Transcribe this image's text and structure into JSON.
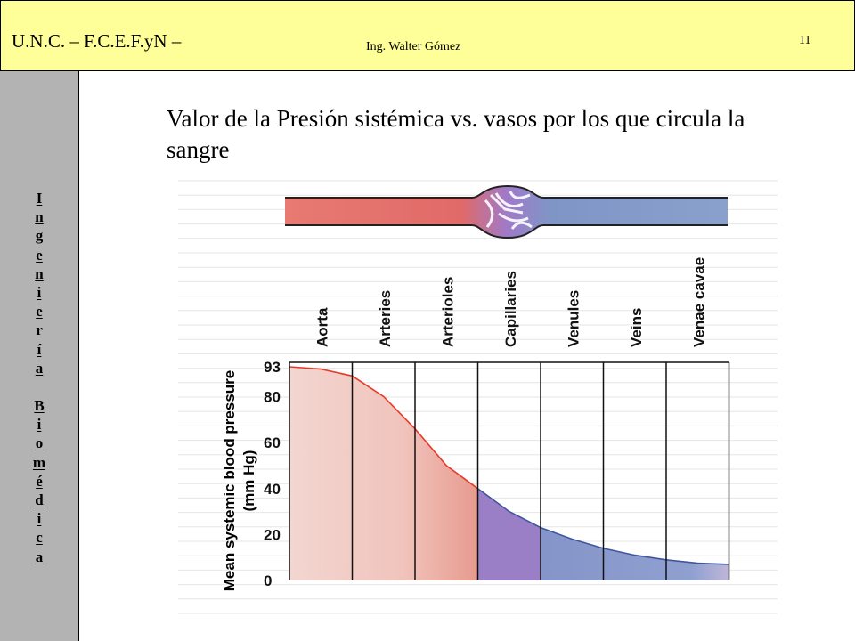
{
  "header": {
    "left_text": "U.N.C. – F.C.E.F.yN –",
    "center_text": "Ing. Walter Gómez",
    "page_number": "11"
  },
  "sidebar": {
    "vertical_text": [
      "I",
      "n",
      "g",
      "e",
      "n",
      "i",
      "e",
      "r",
      "í",
      "a",
      " ",
      "B",
      "i",
      "o",
      "m",
      "é",
      "d",
      "i",
      "c",
      "a"
    ]
  },
  "slide": {
    "title": "Valor de la Presión sistémica vs. vasos por los que circula la sangre"
  },
  "colors": {
    "header_bg": "#ffff99",
    "sidebar_bg": "#b3b3b3",
    "arterial_red": "#e06666",
    "venous_blue": "#7f95c6",
    "capillary_purple": "#9b7fc6",
    "curve_red": "#e83a2a",
    "curve_blue": "#4055a0"
  },
  "chart_data": {
    "type": "area",
    "categories": [
      "Aorta",
      "Arteries",
      "Arterioles",
      "Capillaries",
      "Venules",
      "Veins",
      "Venae cavae"
    ],
    "ylabel": "Mean systemic blood pressure\n(mm Hg)",
    "yticks": [
      0,
      20,
      40,
      60,
      80,
      93
    ],
    "ylim": [
      0,
      100
    ],
    "x": [
      0,
      0.5,
      1.0,
      1.5,
      2.0,
      2.5,
      3.0,
      3.5,
      4.0,
      4.5,
      5.0,
      5.5,
      6.0,
      6.5,
      7.0
    ],
    "values": [
      93,
      92,
      89,
      80,
      66,
      50,
      40,
      30,
      23,
      18,
      14,
      11,
      9,
      7.5,
      7
    ],
    "segments": [
      {
        "name": "arterial",
        "x_range": [
          0,
          3
        ]
      },
      {
        "name": "capillary",
        "x_range": [
          3,
          4
        ]
      },
      {
        "name": "venous",
        "x_range": [
          4,
          7
        ]
      }
    ],
    "grid": false
  }
}
